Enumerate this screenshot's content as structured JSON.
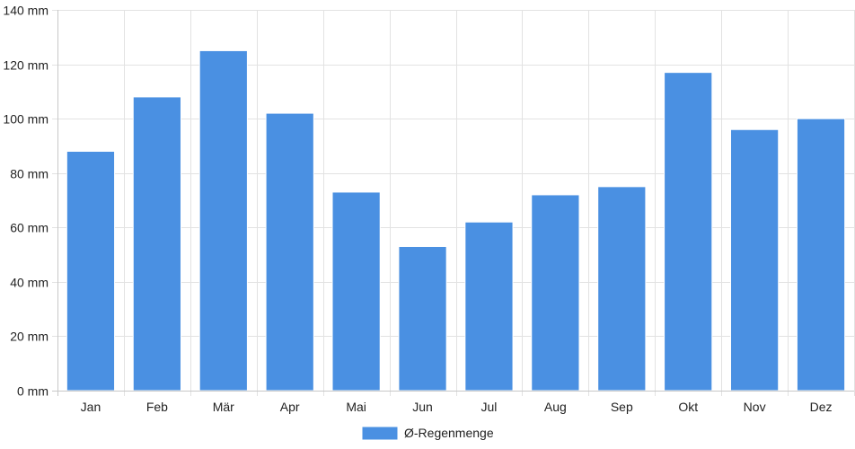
{
  "chart_data": {
    "type": "bar",
    "categories": [
      "Jan",
      "Feb",
      "Mär",
      "Apr",
      "Mai",
      "Jun",
      "Jul",
      "Aug",
      "Sep",
      "Okt",
      "Nov",
      "Dez"
    ],
    "series": [
      {
        "name": "Ø-Regenmenge",
        "color": "#4a90e2",
        "values": [
          88,
          108,
          125,
          102,
          73,
          53,
          62,
          72,
          75,
          117,
          96,
          100
        ]
      }
    ],
    "ylim": [
      0,
      140
    ],
    "yticks": [
      0,
      20,
      40,
      60,
      80,
      100,
      120,
      140
    ],
    "y_unit_suffix": " mm",
    "grid": true,
    "legend_position": "bottom-center"
  }
}
